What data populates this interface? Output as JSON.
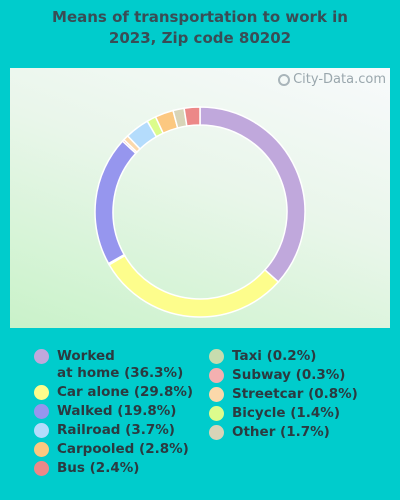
{
  "header": {
    "title_line1": "Means of transportation to work in",
    "title_line2": "2023, Zip code 80202"
  },
  "watermark": {
    "text": "City-Data.com",
    "icon": "magnifier-icon"
  },
  "chart_data": {
    "type": "pie",
    "style": "donut",
    "title": "Means of transportation to work in 2023, Zip code 80202",
    "unit": "%",
    "legend_position": "bottom",
    "slices": [
      {
        "name": "Worked at home",
        "label": "Worked\nat home (36.3%)",
        "value": 36.3,
        "color": "#c0a8dc"
      },
      {
        "name": "Car alone",
        "label": "Car alone (29.8%)",
        "value": 29.8,
        "color": "#fdfd8c"
      },
      {
        "name": "Taxi",
        "label": "Taxi (0.2%)",
        "value": 0.2,
        "color": "#c7dcae"
      },
      {
        "name": "Walked",
        "label": "Walked (19.8%)",
        "value": 19.8,
        "color": "#9696ee"
      },
      {
        "name": "Subway",
        "label": "Subway (0.3%)",
        "value": 0.3,
        "color": "#f4b0b0"
      },
      {
        "name": "Streetcar",
        "label": "Streetcar (0.8%)",
        "value": 0.8,
        "color": "#fbd8aa"
      },
      {
        "name": "Railroad",
        "label": "Railroad (3.7%)",
        "value": 3.7,
        "color": "#b4dcfc"
      },
      {
        "name": "Bicycle",
        "label": "Bicycle (1.4%)",
        "value": 1.4,
        "color": "#dcfc8c"
      },
      {
        "name": "Carpooled",
        "label": "Carpooled (2.8%)",
        "value": 2.8,
        "color": "#fcc880"
      },
      {
        "name": "Other",
        "label": "Other (1.7%)",
        "value": 1.7,
        "color": "#d8d4b8"
      },
      {
        "name": "Bus",
        "label": "Bus (2.4%)",
        "value": 2.4,
        "color": "#ec8888"
      }
    ]
  },
  "legend": {
    "left": [
      {
        "label": "Worked\nat home (36.3%)",
        "color": "#c0a8dc"
      },
      {
        "label": "Car alone (29.8%)",
        "color": "#fdfd8c"
      },
      {
        "label": "Walked (19.8%)",
        "color": "#9696ee"
      },
      {
        "label": "Railroad (3.7%)",
        "color": "#b4dcfc"
      },
      {
        "label": "Carpooled (2.8%)",
        "color": "#fcc880"
      },
      {
        "label": "Bus (2.4%)",
        "color": "#ec8888"
      }
    ],
    "right": [
      {
        "label": "Taxi (0.2%)",
        "color": "#c7dcae"
      },
      {
        "label": "Subway (0.3%)",
        "color": "#f4b0b0"
      },
      {
        "label": "Streetcar (0.8%)",
        "color": "#fbd8aa"
      },
      {
        "label": "Bicycle (1.4%)",
        "color": "#dcfc8c"
      },
      {
        "label": "Other (1.7%)",
        "color": "#d8d4b8"
      }
    ]
  }
}
